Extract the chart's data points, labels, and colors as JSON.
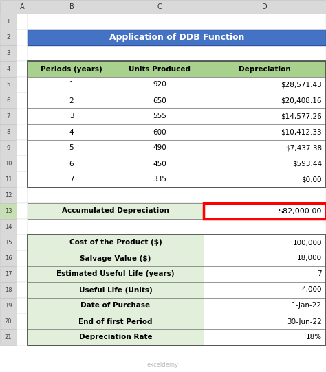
{
  "title": "Application of DDB Function",
  "title_bg": "#4472C4",
  "title_fg": "#FFFFFF",
  "header_bg": "#A9D18E",
  "header_fg": "#000000",
  "green_cell_bg": "#E2EFDA",
  "col_headers": [
    "Periods (years)",
    "Units Produced",
    "Depreciation"
  ],
  "rows": [
    [
      "1",
      "920",
      "$28,571.43"
    ],
    [
      "2",
      "650",
      "$20,408.16"
    ],
    [
      "3",
      "555",
      "$14,577.26"
    ],
    [
      "4",
      "600",
      "$10,412.33"
    ],
    [
      "5",
      "490",
      "$7,437.38"
    ],
    [
      "6",
      "450",
      "$593.44"
    ],
    [
      "7",
      "335",
      "$0.00"
    ]
  ],
  "accum_label": "Accumulated Depreciation",
  "accum_value": "$82,000.00",
  "accum_value_border": "#FF0000",
  "info_rows": [
    [
      "Cost of the Product ($)",
      "100,000"
    ],
    [
      "Salvage Value ($)",
      "18,000"
    ],
    [
      "Estimated Useful Life (years)",
      "7"
    ],
    [
      "Useful Life (Units)",
      "4,000"
    ],
    [
      "Date of Purchase",
      "1-Jan-22"
    ],
    [
      "End of first Period",
      "30-Jun-22"
    ],
    [
      "Depreciation Rate",
      "18%"
    ]
  ],
  "excel_header_bg": "#D9D9D9",
  "excel_header_fg": "#333333",
  "row_selected_bg": "#C6E0B4",
  "watermark": "exceldemy"
}
